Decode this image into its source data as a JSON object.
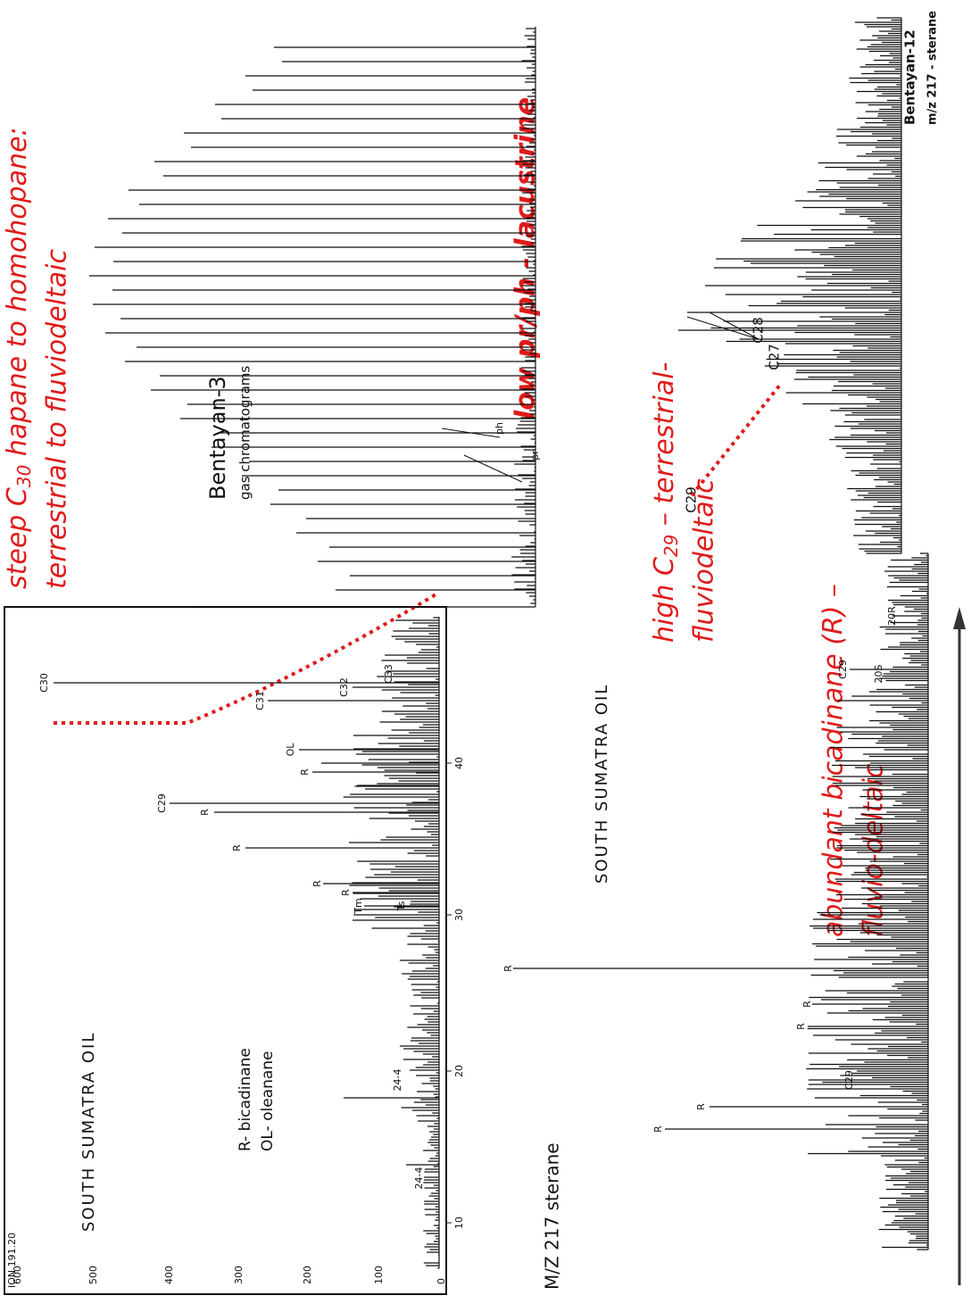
{
  "hopane_panel": {
    "ion": "ION 191.20",
    "title": "SOUTH SUMATRA OIL",
    "legend": [
      "R- bicadinane",
      "OL- oleanane"
    ],
    "y_tick_labels": [
      "600",
      "500",
      "400",
      "300",
      "200",
      "100",
      "0"
    ],
    "x_tick_labels": [
      "10",
      "20",
      "30",
      "40"
    ],
    "peak_labels": [
      "C30",
      "C29",
      "R",
      "R",
      "OL",
      "R",
      "C31",
      "C32",
      "C33",
      "R",
      "R",
      "Tm",
      "Ts",
      "24-4",
      "24-4"
    ]
  },
  "gc_panel": {
    "title": "Bentayan-3",
    "subtitle": "gas chromatograms",
    "peak_labels": [
      "pr",
      "ph"
    ]
  },
  "sterane_panel": {
    "label": "M/Z 217 sterane",
    "title": "SOUTH SUMATRA OIL",
    "peak_labels": [
      "R",
      "R",
      "R",
      "R",
      "R",
      "C29",
      "C29",
      "20S",
      "20R"
    ]
  },
  "bentayan12_panel": {
    "title": "Bentayan-12",
    "subtitle": "m/z 217 - sterane",
    "peak_labels": [
      "C29",
      "C28",
      "C27"
    ]
  },
  "annotations": {
    "hopane": {
      "line1_prefix": "steep C",
      "line1_sub": "30",
      "line1_suffix": " hapane to homohopane:",
      "line2": "terrestrial to fluviodeltaic"
    },
    "gc": "low pr/ph - lacustrine",
    "c29": {
      "line1_prefix": "high C",
      "line1_sub": "29",
      "line1_suffix": " – terrestrial-",
      "line2": "fluviodeltaic"
    },
    "bicadinane": {
      "line1": "abundant bicadinane  (R) –",
      "line2": "fluvio-deltaic"
    }
  }
}
